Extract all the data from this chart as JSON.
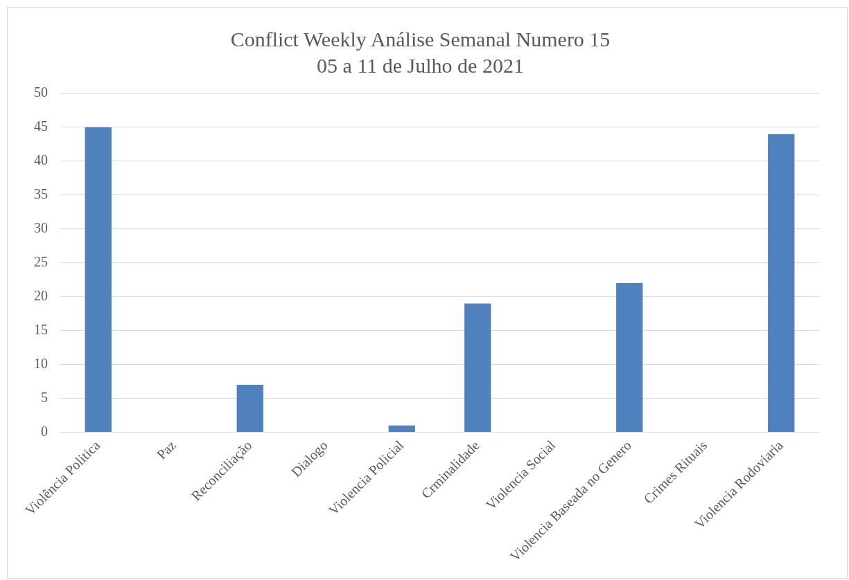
{
  "chart_data": {
    "type": "bar",
    "title": "Conflict Weekly Análise Semanal Numero 15",
    "subtitle": "05 a 11 de Julho de 2021",
    "categories": [
      "Violência Politica",
      "Paz",
      "Reconciliação",
      "Dialogo",
      "Violencia Policial",
      "Crminalidade",
      "Violencia Social",
      "Violencia Baseada no Genero",
      "Crimes Rituais",
      "Violencia Rodoviaria"
    ],
    "values": [
      45,
      0,
      7,
      0,
      1,
      19,
      0,
      22,
      0,
      44
    ],
    "color": "#4f81bd",
    "ylim": [
      0,
      50
    ],
    "yticks": [
      0,
      5,
      10,
      15,
      20,
      25,
      30,
      35,
      40,
      45,
      50
    ],
    "grid": "y",
    "legend": false
  }
}
